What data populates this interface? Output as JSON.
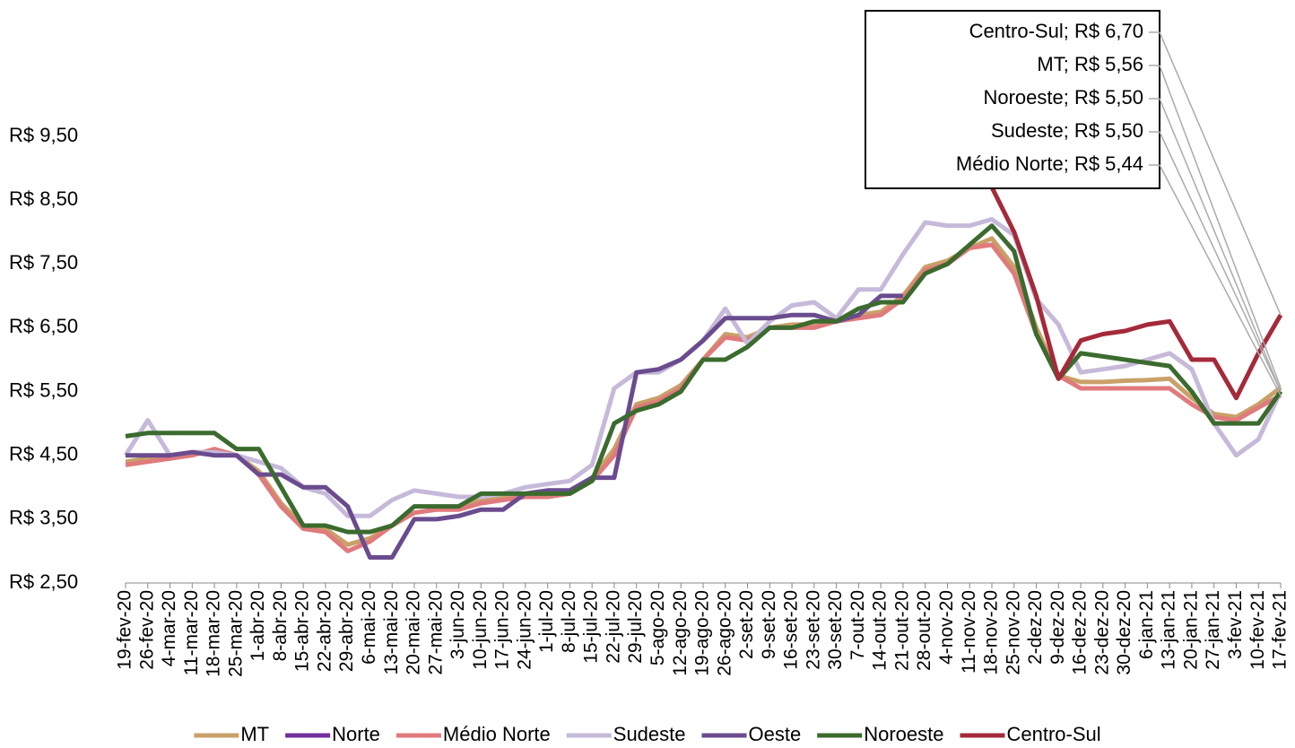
{
  "chart_data": {
    "type": "line",
    "categories": [
      "19-fev-20",
      "26-fev-20",
      "4-mar-20",
      "11-mar-20",
      "18-mar-20",
      "25-mar-20",
      "1-abr-20",
      "8-abr-20",
      "15-abr-20",
      "22-abr-20",
      "29-abr-20",
      "6-mai-20",
      "13-mai-20",
      "20-mai-20",
      "27-mai-20",
      "3-jun-20",
      "10-jun-20",
      "17-jun-20",
      "24-jun-20",
      "1-jul-20",
      "8-jul-20",
      "15-jul-20",
      "22-jul-20",
      "29-jul-20",
      "5-ago-20",
      "12-ago-20",
      "19-ago-20",
      "26-ago-20",
      "2-set-20",
      "9-set-20",
      "16-set-20",
      "23-set-20",
      "30-set-20",
      "7-out-20",
      "14-out-20",
      "21-out-20",
      "28-out-20",
      "4-nov-20",
      "11-nov-20",
      "18-nov-20",
      "25-nov-20",
      "2-dez-20",
      "9-dez-20",
      "16-dez-20",
      "23-dez-20",
      "30-dez-20",
      "6-jan-21",
      "13-jan-21",
      "20-jan-21",
      "27-jan-21",
      "3-fev-21",
      "10-fev-21",
      "17-fev-21"
    ],
    "series": [
      {
        "name": "MT",
        "color": "#c9a168",
        "values": [
          4.4,
          4.45,
          4.5,
          4.55,
          4.55,
          4.5,
          4.25,
          3.75,
          3.4,
          3.35,
          3.1,
          3.2,
          3.4,
          3.6,
          3.65,
          3.7,
          3.8,
          3.85,
          3.9,
          3.9,
          3.9,
          4.15,
          4.6,
          5.3,
          5.4,
          5.6,
          6.0,
          6.4,
          6.35,
          6.5,
          6.55,
          6.55,
          6.6,
          6.7,
          6.75,
          7.0,
          7.45,
          7.55,
          7.75,
          7.9,
          7.45,
          6.5,
          5.75,
          5.65,
          5.65,
          5.67,
          5.68,
          5.7,
          5.4,
          5.15,
          5.1,
          5.3,
          5.56
        ]
      },
      {
        "name": "Norte",
        "color": "#7030a0",
        "values": [
          null,
          null,
          null,
          null,
          null,
          null,
          null,
          null,
          null,
          null,
          null,
          null,
          null,
          null,
          null,
          null,
          null,
          null,
          null,
          null,
          null,
          null,
          null,
          null,
          null,
          null,
          null,
          null,
          null,
          null,
          null,
          null,
          null,
          null,
          null,
          null,
          null,
          null,
          null,
          null,
          null,
          null,
          null,
          null,
          null,
          null,
          null,
          null,
          null,
          null,
          null,
          null,
          null
        ]
      },
      {
        "name": "Médio Norte",
        "color": "#e07a7c",
        "values": [
          4.35,
          4.4,
          4.45,
          4.5,
          4.6,
          4.5,
          4.2,
          3.7,
          3.35,
          3.3,
          3.0,
          3.15,
          3.4,
          3.6,
          3.65,
          3.65,
          3.75,
          3.8,
          3.85,
          3.85,
          3.9,
          4.1,
          4.5,
          5.25,
          5.35,
          5.55,
          6.0,
          6.35,
          6.3,
          6.5,
          6.5,
          6.5,
          6.6,
          6.65,
          6.7,
          6.95,
          7.4,
          7.5,
          7.75,
          7.8,
          7.35,
          6.4,
          5.75,
          5.55,
          5.55,
          5.55,
          5.55,
          5.55,
          5.3,
          5.1,
          5.05,
          5.25,
          5.44
        ]
      },
      {
        "name": "Sudeste",
        "color": "#c6b9d9",
        "values": [
          4.5,
          5.05,
          4.5,
          4.55,
          4.55,
          4.5,
          4.4,
          4.3,
          4.0,
          3.9,
          3.55,
          3.55,
          3.8,
          3.95,
          3.9,
          3.85,
          3.85,
          3.9,
          4.0,
          4.05,
          4.1,
          4.35,
          5.55,
          5.8,
          5.8,
          6.0,
          6.3,
          6.8,
          6.25,
          6.6,
          6.85,
          6.9,
          6.65,
          7.1,
          7.1,
          7.65,
          8.15,
          8.1,
          8.1,
          8.2,
          7.95,
          6.95,
          6.55,
          5.8,
          5.85,
          5.9,
          6.0,
          6.1,
          5.85,
          5.0,
          4.5,
          4.75,
          5.5
        ]
      },
      {
        "name": "Oeste",
        "color": "#6a4c8e",
        "values": [
          4.5,
          4.5,
          4.5,
          4.55,
          4.5,
          4.5,
          4.2,
          4.2,
          4.0,
          4.0,
          3.7,
          2.9,
          2.9,
          3.5,
          3.5,
          3.55,
          3.65,
          3.65,
          3.9,
          3.95,
          3.95,
          4.15,
          4.15,
          5.8,
          5.85,
          6.0,
          6.3,
          6.65,
          6.65,
          6.65,
          6.7,
          6.7,
          6.6,
          6.7,
          7.0,
          7.0,
          null,
          null,
          null,
          null,
          null,
          null,
          null,
          null,
          null,
          null,
          null,
          null,
          null,
          null,
          null,
          null,
          null
        ]
      },
      {
        "name": "Noroeste",
        "color": "#3b6b2e",
        "values": [
          4.8,
          4.85,
          4.85,
          4.85,
          4.85,
          4.6,
          4.6,
          4.0,
          3.4,
          3.4,
          3.3,
          3.3,
          3.4,
          3.7,
          3.7,
          3.7,
          3.9,
          3.9,
          3.9,
          3.9,
          3.9,
          4.1,
          5.0,
          5.2,
          5.3,
          5.5,
          6.0,
          6.0,
          6.2,
          6.5,
          6.5,
          6.6,
          6.6,
          6.8,
          6.9,
          6.9,
          7.35,
          7.5,
          7.8,
          8.1,
          7.7,
          6.4,
          5.7,
          6.1,
          6.05,
          6.0,
          5.95,
          5.9,
          5.5,
          5.0,
          5.0,
          5.0,
          5.5
        ]
      },
      {
        "name": "Centro-Sul",
        "color": "#a42a3a",
        "values": [
          null,
          null,
          null,
          null,
          null,
          null,
          null,
          null,
          null,
          null,
          null,
          null,
          null,
          null,
          null,
          null,
          null,
          null,
          null,
          null,
          null,
          null,
          null,
          null,
          null,
          null,
          null,
          null,
          null,
          null,
          null,
          null,
          null,
          null,
          null,
          null,
          null,
          null,
          null,
          8.7,
          8.0,
          7.0,
          5.7,
          6.3,
          6.4,
          6.45,
          6.55,
          6.6,
          6.0,
          6.0,
          5.4,
          6.1,
          6.7
        ]
      }
    ],
    "ylim": [
      2.5,
      9.5
    ],
    "yticks": [
      {
        "value": 2.5,
        "label": "R$ 2,50"
      },
      {
        "value": 3.5,
        "label": "R$ 3,50"
      },
      {
        "value": 4.5,
        "label": "R$ 4,50"
      },
      {
        "value": 5.5,
        "label": "R$ 5,50"
      },
      {
        "value": 6.5,
        "label": "R$ 6,50"
      },
      {
        "value": 7.5,
        "label": "R$ 7,50"
      },
      {
        "value": 8.5,
        "label": "R$ 8,50"
      },
      {
        "value": 9.5,
        "label": "R$ 9,50"
      }
    ],
    "annotations": [
      "Centro-Sul; R$ 6,70",
      "MT; R$ 5,56",
      "Noroeste; R$ 5,50",
      "Sudeste; R$ 5,50",
      "Médio Norte; R$ 5,44"
    ],
    "legend": "bottom"
  }
}
